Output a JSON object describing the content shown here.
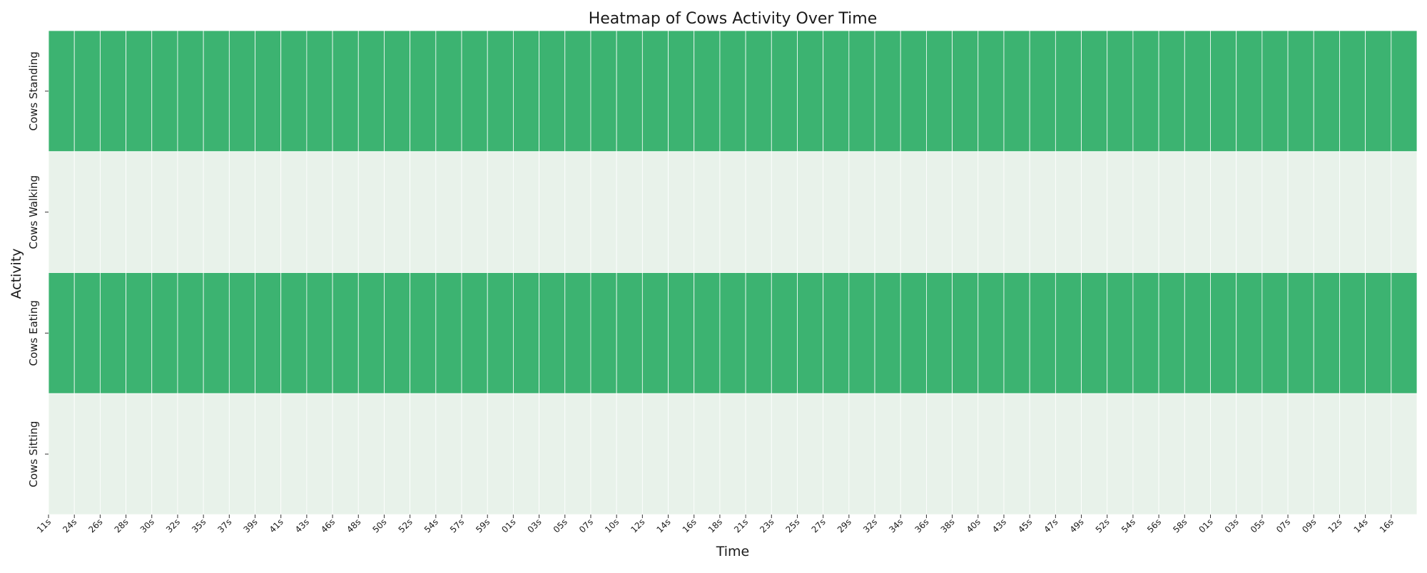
{
  "chart_data": {
    "type": "heatmap",
    "title": "Heatmap of Cows Activity Over Time",
    "xlabel": "Time",
    "ylabel": "Activity",
    "rows": [
      "Cows Standing",
      "Cows Walking",
      "Cows Eating",
      "Cows Sitting"
    ],
    "columns": [
      "11s",
      "24s",
      "26s",
      "28s",
      "30s",
      "32s",
      "35s",
      "37s",
      "39s",
      "41s",
      "43s",
      "46s",
      "48s",
      "50s",
      "52s",
      "54s",
      "57s",
      "59s",
      "01s",
      "03s",
      "05s",
      "07s",
      "10s",
      "12s",
      "14s",
      "16s",
      "18s",
      "21s",
      "23s",
      "25s",
      "27s",
      "29s",
      "32s",
      "34s",
      "36s",
      "38s",
      "40s",
      "43s",
      "45s",
      "47s",
      "49s",
      "52s",
      "54s",
      "56s",
      "58s",
      "01s",
      "03s",
      "05s",
      "07s",
      "09s",
      "12s",
      "14s",
      "16s"
    ],
    "row_values": [
      1,
      0,
      1,
      0
    ],
    "value_range": [
      0,
      1
    ],
    "colors": {
      "low": "#e8f2ea",
      "high": "#3cb371",
      "cell_border": "#ffffff"
    },
    "legend": "none"
  }
}
